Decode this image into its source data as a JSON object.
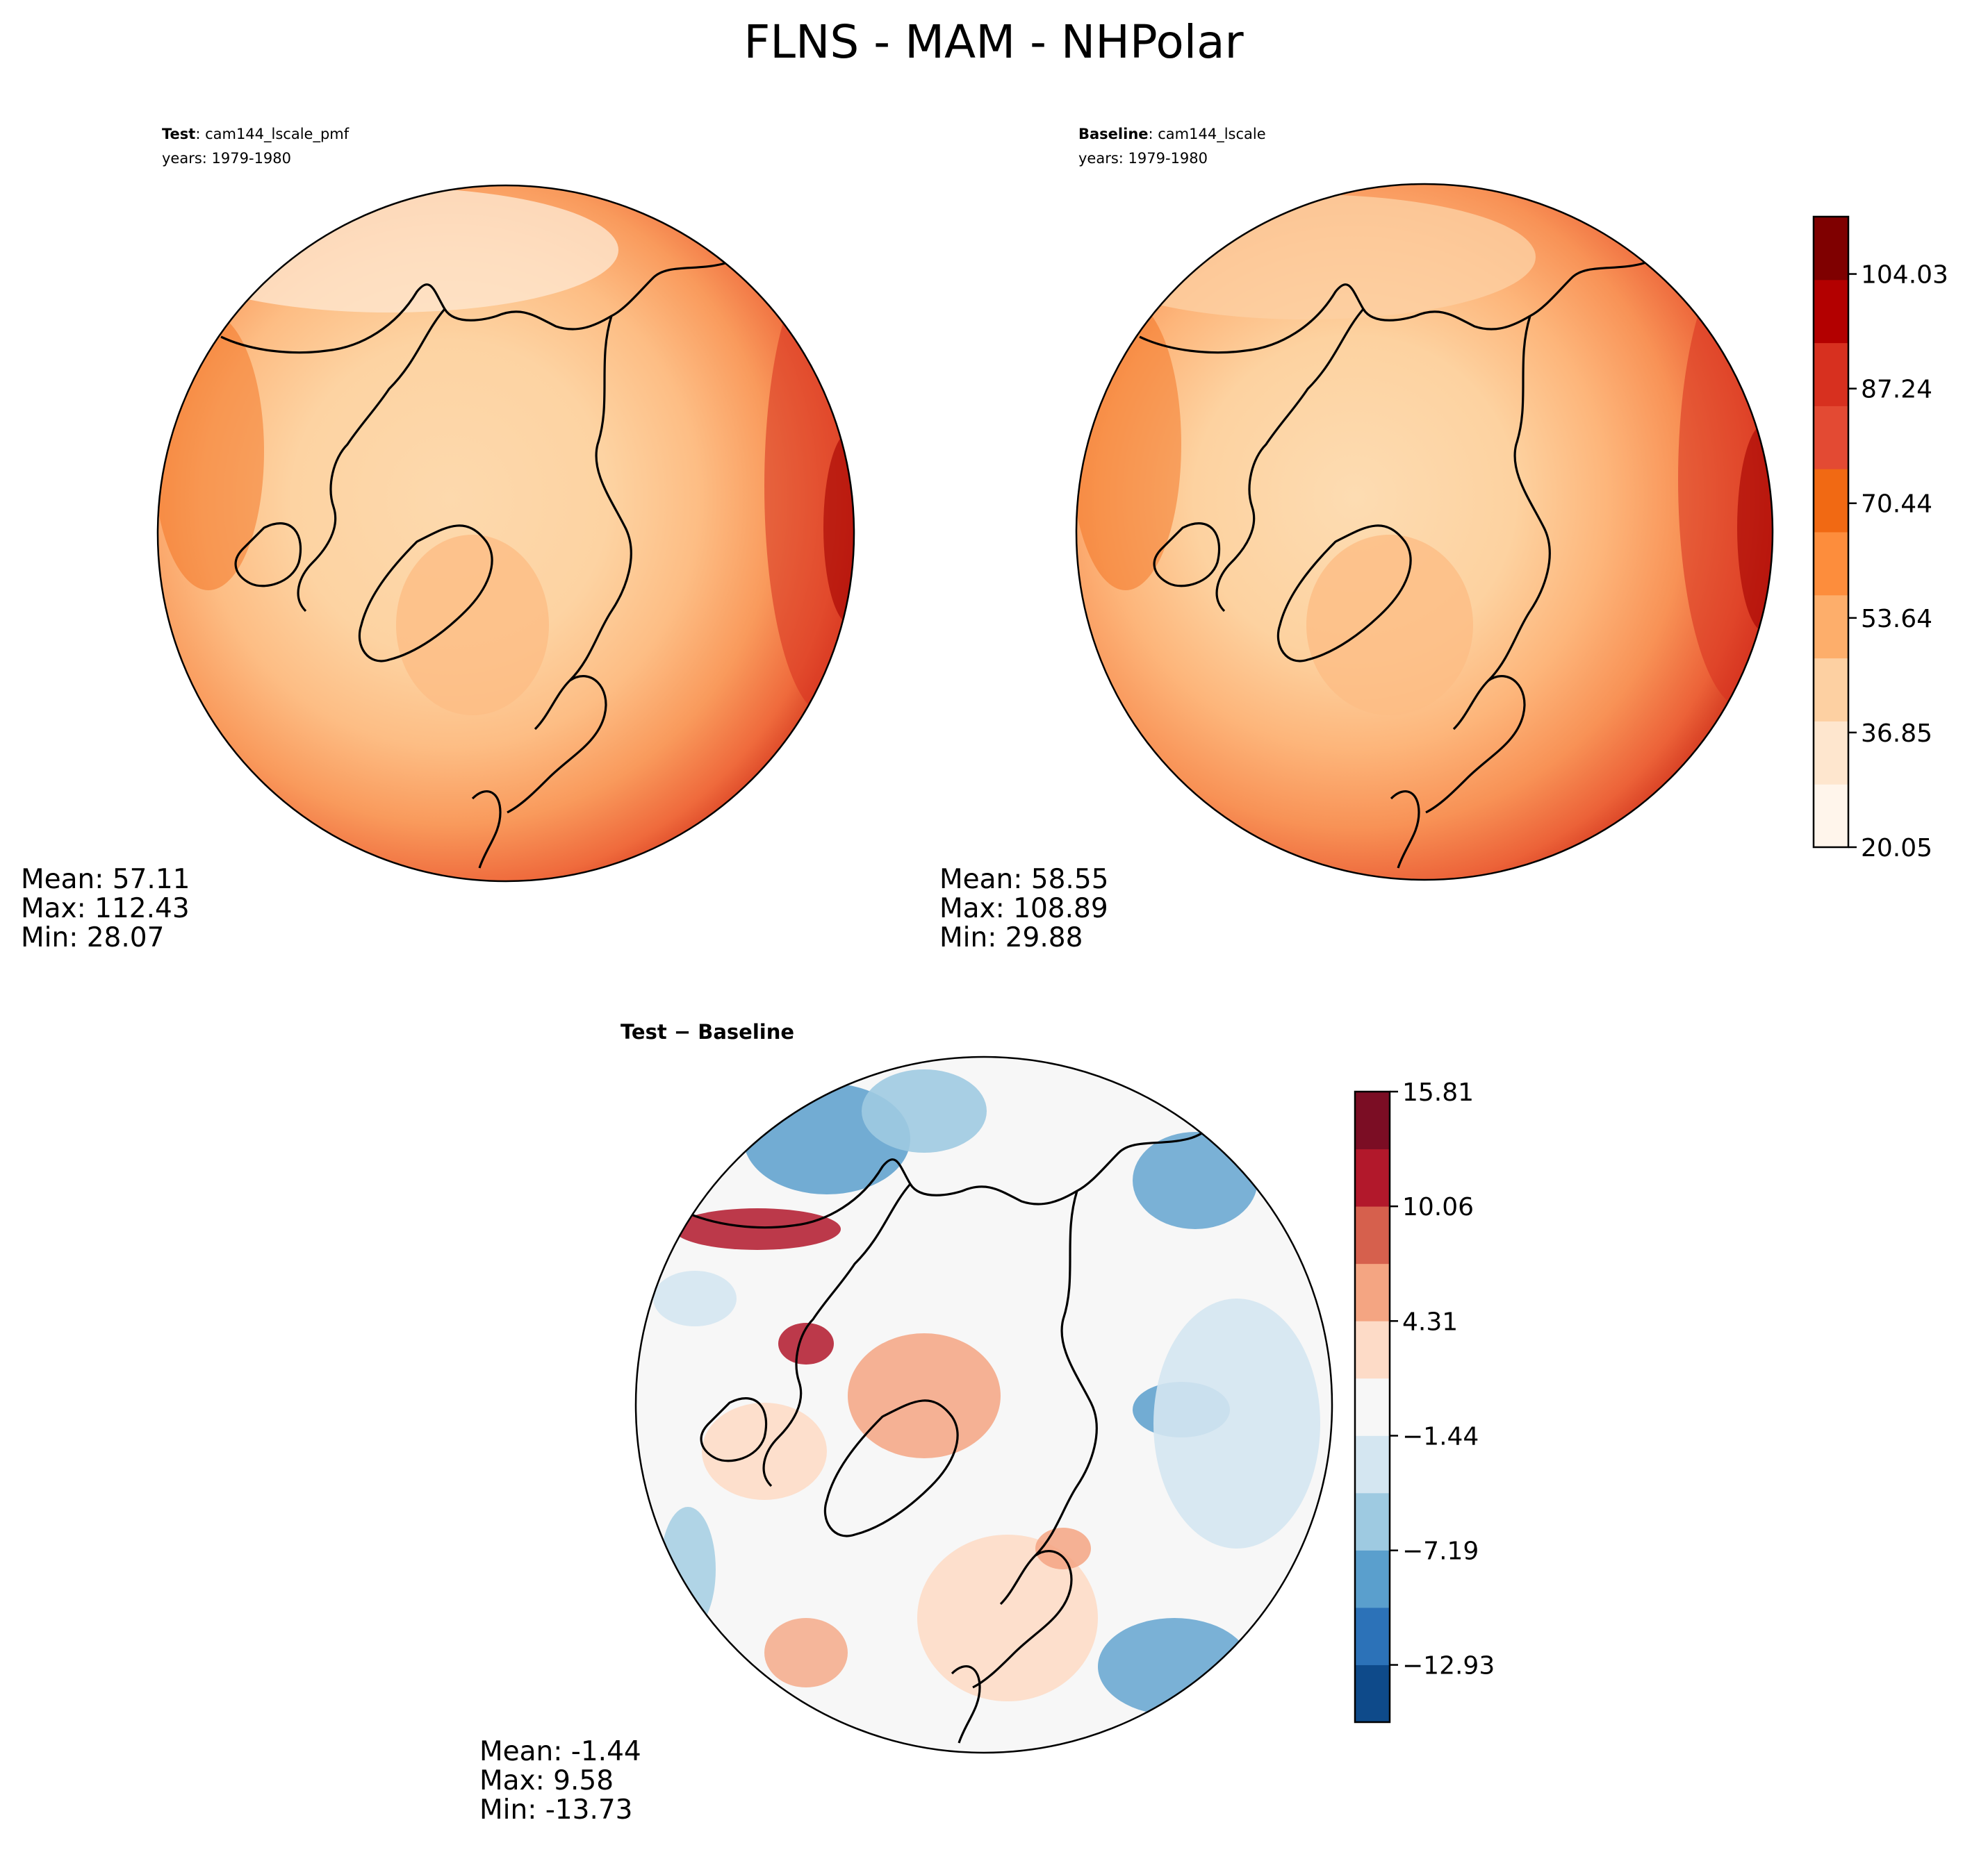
{
  "chart_data": {
    "type": "heatmap",
    "title": "FLNS - MAM - NHPolar",
    "panels": [
      {
        "id": "test",
        "label_bold": "Test",
        "label_rest": ": cam144_lscale_pmf",
        "years": "years: 1979-1980",
        "stats": {
          "mean": "Mean: 57.11",
          "max": "Max: 112.43",
          "min": "Min: 28.07"
        }
      },
      {
        "id": "baseline",
        "label_bold": "Baseline",
        "label_rest": ": cam144_lscale",
        "years": "years: 1979-1980",
        "stats": {
          "mean": "Mean: 58.55",
          "max": "Max: 108.89",
          "min": "Min: 29.88"
        }
      },
      {
        "id": "diff",
        "title": "Test − Baseline",
        "stats": {
          "mean": "Mean: -1.44",
          "max": "Max:  9.58",
          "min": "Min: -13.73"
        }
      }
    ],
    "colorbar_main": {
      "range": [
        20.05,
        112.43
      ],
      "ticks": [
        {
          "value": 20.05,
          "label": "20.05"
        },
        {
          "value": 36.85,
          "label": "36.85"
        },
        {
          "value": 53.64,
          "label": "53.64"
        },
        {
          "value": 70.44,
          "label": "70.44"
        },
        {
          "value": 87.24,
          "label": "87.24"
        },
        {
          "value": 104.03,
          "label": "104.03"
        }
      ],
      "colors": [
        "#fff5eb",
        "#fee6ce",
        "#fdd0a2",
        "#fdae6b",
        "#fd8d3c",
        "#f16913",
        "#e34a33",
        "#d7301f",
        "#b30000",
        "#7f0000"
      ]
    },
    "colorbar_diff": {
      "range": [
        -15.8,
        15.81
      ],
      "ticks": [
        {
          "value": -12.93,
          "label": "−12.93"
        },
        {
          "value": -7.19,
          "label": "−7.19"
        },
        {
          "value": -1.44,
          "label": "−1.44"
        },
        {
          "value": 4.31,
          "label": "4.31"
        },
        {
          "value": 10.06,
          "label": "10.06"
        },
        {
          "value": 15.81,
          "label": "15.81"
        }
      ],
      "colors": [
        "#0e4a8a",
        "#2c72b8",
        "#5a9fcd",
        "#9ecae1",
        "#d4e6f1",
        "#f7f7f7",
        "#fddbc7",
        "#f4a582",
        "#d6604d",
        "#b2182b",
        "#7b0d24"
      ]
    }
  }
}
